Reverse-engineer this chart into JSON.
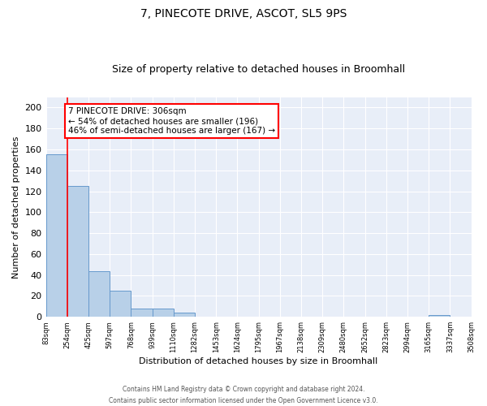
{
  "title": "7, PINECOTE DRIVE, ASCOT, SL5 9PS",
  "subtitle": "Size of property relative to detached houses in Broomhall",
  "xlabel": "Distribution of detached houses by size in Broomhall",
  "ylabel": "Number of detached properties",
  "bar_values": [
    155,
    125,
    44,
    25,
    8,
    8,
    4,
    0,
    0,
    0,
    0,
    0,
    0,
    0,
    0,
    0,
    0,
    0,
    2,
    0
  ],
  "bin_labels": [
    "83sqm",
    "254sqm",
    "425sqm",
    "597sqm",
    "768sqm",
    "939sqm",
    "1110sqm",
    "1282sqm",
    "1453sqm",
    "1624sqm",
    "1795sqm",
    "1967sqm",
    "2138sqm",
    "2309sqm",
    "2480sqm",
    "2652sqm",
    "2823sqm",
    "2994sqm",
    "3165sqm",
    "3337sqm",
    "3508sqm"
  ],
  "bar_color": "#b8d0e8",
  "bar_edge_color": "#6699cc",
  "vline_color": "red",
  "vline_pos": 0.5,
  "annotation_text": "7 PINECOTE DRIVE: 306sqm\n← 54% of detached houses are smaller (196)\n46% of semi-detached houses are larger (167) →",
  "annotation_box_color": "white",
  "annotation_box_edge": "red",
  "ylim": [
    0,
    210
  ],
  "yticks": [
    0,
    20,
    40,
    60,
    80,
    100,
    120,
    140,
    160,
    180,
    200
  ],
  "bg_color": "#e8eef8",
  "grid_color": "#ffffff",
  "footer_line1": "Contains HM Land Registry data © Crown copyright and database right 2024.",
  "footer_line2": "Contains public sector information licensed under the Open Government Licence v3.0."
}
